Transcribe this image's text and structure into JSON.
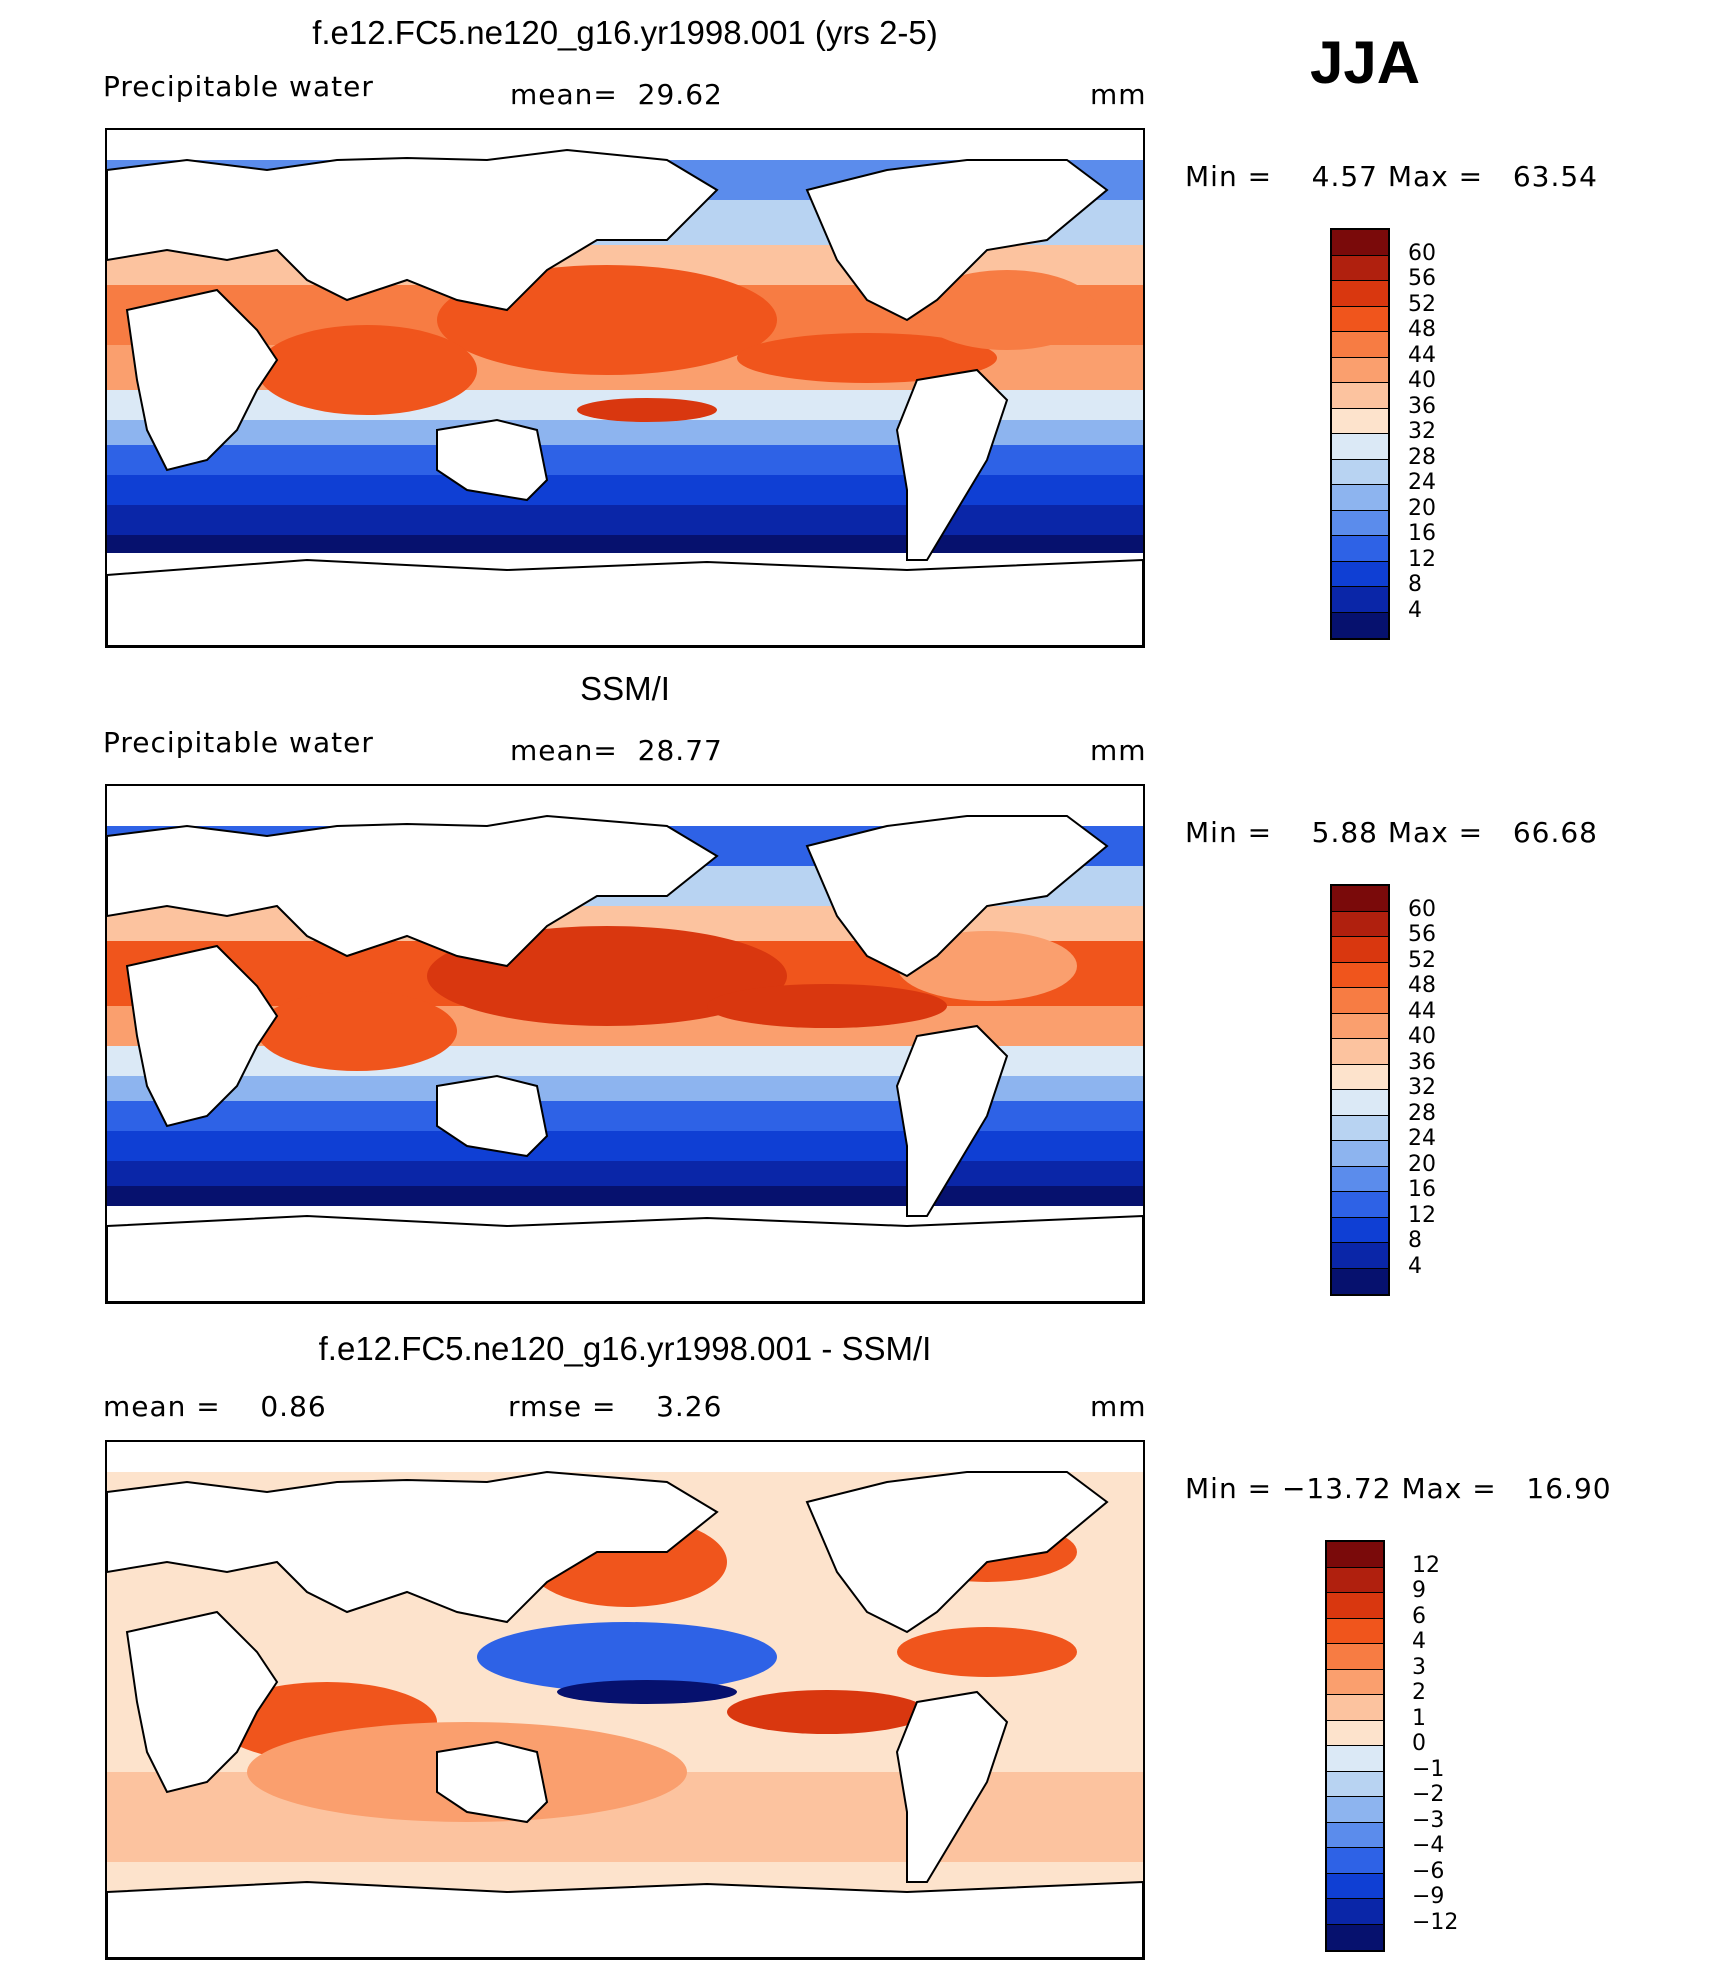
{
  "season": "JJA",
  "panels": [
    {
      "title": "f.e12.FC5.ne120_g16.yr1998.001 (yrs 2-5)",
      "left_label": "Precipitable water",
      "mid_label": "mean=  29.62",
      "units": "mm",
      "minmax": "Min =    4.57 Max =   63.54",
      "colorbar": {
        "ticks": [
          "60",
          "56",
          "52",
          "48",
          "44",
          "40",
          "36",
          "32",
          "28",
          "24",
          "20",
          "16",
          "12",
          "8",
          "4"
        ],
        "colors": [
          "#7a0a0a",
          "#b0200e",
          "#d9370f",
          "#f0551c",
          "#f77c43",
          "#fa9f6e",
          "#fcc39f",
          "#fde3cc",
          "#dbe9f6",
          "#b8d3f2",
          "#8db4ef",
          "#5b8cec",
          "#2e62e6",
          "#0f3fd4",
          "#0a26a8",
          "#06116e"
        ]
      }
    },
    {
      "title": "SSM/I",
      "left_label": "Precipitable water",
      "mid_label": "mean=  28.77",
      "units": "mm",
      "minmax": "Min =    5.88 Max =   66.68",
      "colorbar": {
        "ticks": [
          "60",
          "56",
          "52",
          "48",
          "44",
          "40",
          "36",
          "32",
          "28",
          "24",
          "20",
          "16",
          "12",
          "8",
          "4"
        ],
        "colors": [
          "#7a0a0a",
          "#b0200e",
          "#d9370f",
          "#f0551c",
          "#f77c43",
          "#fa9f6e",
          "#fcc39f",
          "#fde3cc",
          "#dbe9f6",
          "#b8d3f2",
          "#8db4ef",
          "#5b8cec",
          "#2e62e6",
          "#0f3fd4",
          "#0a26a8",
          "#06116e"
        ]
      }
    },
    {
      "title": "f.e12.FC5.ne120_g16.yr1998.001 - SSM/I",
      "left_label": "mean =    0.86",
      "mid_label": "rmse =    3.26",
      "units": "mm",
      "minmax": "Min = −13.72 Max =   16.90",
      "colorbar": {
        "ticks": [
          "12",
          "9",
          "6",
          "4",
          "3",
          "2",
          "1",
          "0",
          "−1",
          "−2",
          "−3",
          "−4",
          "−6",
          "−9",
          "−12"
        ],
        "colors": [
          "#7a0a0a",
          "#b0200e",
          "#d9370f",
          "#f0551c",
          "#f77c43",
          "#fa9f6e",
          "#fcc39f",
          "#fde3cc",
          "#dbe9f6",
          "#b8d3f2",
          "#8db4ef",
          "#5b8cec",
          "#2e62e6",
          "#0f3fd4",
          "#0a26a8",
          "#06116e"
        ]
      }
    }
  ]
}
